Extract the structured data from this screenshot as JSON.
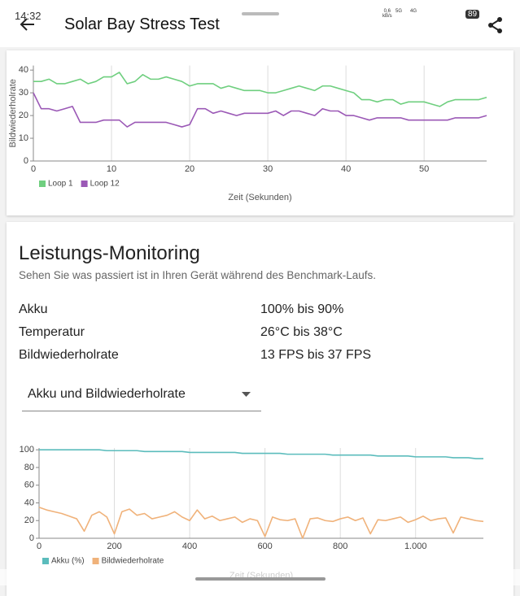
{
  "status_bar": {
    "time": "14:32",
    "speed": "0,6",
    "speed_unit": "kB/s",
    "signal_labels": [
      "5G",
      "4G"
    ],
    "battery": "89"
  },
  "header": {
    "title": "Solar Bay Stress Test"
  },
  "monitoring": {
    "title": "Leistungs-Monitoring",
    "subtitle": "Sehen Sie was passiert ist in Ihren Gerät während des Benchmark-Laufs.",
    "rows": [
      {
        "label": "Akku",
        "value": "100% bis 90%"
      },
      {
        "label": "Temperatur",
        "value": "26°C bis 38°C"
      },
      {
        "label": "Bildwiederholrate",
        "value": "13 FPS bis 37 FPS"
      }
    ],
    "dropdown": "Akku und Bildwiederholrate"
  },
  "chart_data": [
    {
      "type": "line",
      "y_label": "Bildwiederholrate",
      "x_label": "Zeit (Sekunden)",
      "x": [
        0,
        1,
        2,
        3,
        4,
        5,
        6,
        7,
        8,
        9,
        10,
        11,
        12,
        13,
        14,
        15,
        16,
        17,
        18,
        19,
        20,
        21,
        22,
        23,
        24,
        25,
        26,
        27,
        28,
        29,
        30,
        31,
        32,
        33,
        34,
        35,
        36,
        37,
        38,
        39,
        40,
        41,
        42,
        43,
        44,
        45,
        46,
        47,
        48,
        49,
        50,
        51,
        52,
        53,
        54,
        55,
        56,
        57,
        58
      ],
      "xlim": [
        0,
        58
      ],
      "xticks": [
        0,
        10,
        20,
        30,
        40,
        50
      ],
      "ylim": [
        0,
        42
      ],
      "yticks": [
        0,
        10,
        20,
        30,
        40
      ],
      "grid": true,
      "legend": "bottom-left",
      "series": [
        {
          "name": "Loop 1",
          "color": "#6fcf7f",
          "values": [
            35,
            35,
            36,
            34,
            34,
            35,
            36,
            34,
            35,
            37,
            37,
            39,
            34,
            35,
            38,
            36,
            36,
            37,
            36,
            35,
            33,
            34,
            34,
            34,
            32,
            33,
            32,
            31,
            31,
            31,
            30,
            30,
            31,
            32,
            33,
            32,
            31,
            33,
            33,
            32,
            31,
            30,
            27,
            27,
            26,
            27,
            27,
            25,
            26,
            26,
            26,
            25,
            24,
            26,
            27,
            27,
            27,
            27,
            28
          ]
        },
        {
          "name": "Loop 12",
          "color": "#9b59b6",
          "values": [
            30,
            23,
            23,
            22,
            23,
            24,
            17,
            17,
            17,
            18,
            18,
            18,
            15,
            17,
            17,
            17,
            17,
            17,
            16,
            15,
            16,
            23,
            23,
            21,
            22,
            21,
            20,
            21,
            21,
            21,
            21,
            22,
            20,
            22,
            22,
            21,
            20,
            23,
            22,
            22,
            20,
            20,
            19,
            18,
            19,
            19,
            19,
            19,
            18,
            18,
            18,
            18,
            18,
            18,
            19,
            19,
            19,
            19,
            20
          ]
        }
      ]
    },
    {
      "type": "line",
      "x_label": "Zeit (Sekunden)",
      "x": [
        0,
        20,
        40,
        60,
        80,
        100,
        120,
        140,
        160,
        180,
        200,
        220,
        240,
        260,
        280,
        300,
        320,
        340,
        360,
        380,
        400,
        420,
        440,
        460,
        480,
        500,
        520,
        540,
        560,
        580,
        600,
        620,
        640,
        660,
        680,
        700,
        720,
        740,
        760,
        780,
        800,
        820,
        840,
        860,
        880,
        900,
        920,
        940,
        960,
        980,
        1000,
        1020,
        1040,
        1060,
        1080,
        1100,
        1120,
        1140,
        1160,
        1180
      ],
      "xlim": [
        0,
        1180
      ],
      "xticks": [
        0,
        200,
        400,
        600,
        800,
        {
          "value": 1000,
          "label": "1.000"
        }
      ],
      "ylim": [
        0,
        102
      ],
      "yticks": [
        0,
        20,
        40,
        60,
        80,
        100
      ],
      "grid": true,
      "legend": "bottom-left",
      "series": [
        {
          "name": "Akku (%)",
          "color": "#5bbcbc",
          "values": [
            100,
            100,
            100,
            100,
            100,
            100,
            100,
            100,
            100,
            99,
            99,
            99,
            99,
            99,
            98,
            98,
            98,
            98,
            98,
            98,
            97,
            97,
            97,
            97,
            97,
            97,
            97,
            96,
            96,
            96,
            96,
            96,
            96,
            95,
            95,
            95,
            95,
            95,
            95,
            94,
            94,
            94,
            94,
            94,
            94,
            93,
            93,
            93,
            93,
            93,
            92,
            92,
            92,
            92,
            92,
            91,
            91,
            91,
            90,
            90
          ]
        },
        {
          "name": "Bildwiederholrate",
          "color": "#f0b27a",
          "values": [
            35,
            32,
            30,
            28,
            25,
            22,
            8,
            26,
            30,
            24,
            5,
            30,
            33,
            26,
            28,
            22,
            24,
            26,
            30,
            24,
            20,
            32,
            22,
            25,
            20,
            22,
            24,
            18,
            22,
            20,
            2,
            24,
            21,
            20,
            22,
            0,
            22,
            23,
            20,
            19,
            22,
            24,
            20,
            23,
            5,
            21,
            20,
            22,
            24,
            18,
            21,
            25,
            20,
            22,
            23,
            6,
            24,
            22,
            20,
            19
          ]
        }
      ]
    }
  ]
}
